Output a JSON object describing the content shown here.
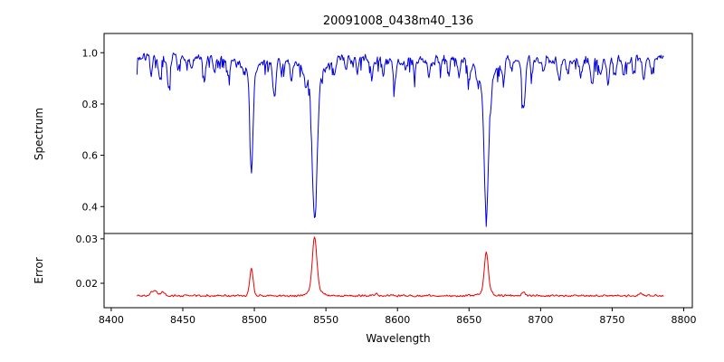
{
  "figure": {
    "background": "#ffffff"
  },
  "chart_data": {
    "type": "line",
    "title": "20091008_0438m40_136",
    "xlabel": "Wavelength",
    "xlim": [
      8395,
      8806
    ],
    "x_ticks": [
      8400,
      8450,
      8500,
      8550,
      8600,
      8650,
      8700,
      8750,
      8800
    ],
    "x_start": 8418,
    "x_end": 8786,
    "step": 0.5,
    "seed": 7,
    "panels": [
      {
        "ylabel": "Spectrum",
        "color": "#0000dd",
        "ylim": [
          0.295,
          1.075
        ],
        "y_tick_values": [
          0.4,
          0.6,
          0.8,
          1.0
        ],
        "y_tick_labels": [
          "0.4",
          "0.6",
          "0.8",
          "1.0"
        ],
        "base": 0.975,
        "noise": 0.02,
        "spiky": 0.3,
        "wave": {
          "amp": 0.006,
          "period": 120
        },
        "absorption_lines": [
          {
            "c": 8498.0,
            "d": 0.38,
            "w": 1.1,
            "wd": 0.05,
            "ww": 4.5
          },
          {
            "c": 8542.1,
            "d": 0.54,
            "w": 1.7,
            "wd": 0.09,
            "ww": 7.0
          },
          {
            "c": 8662.1,
            "d": 0.52,
            "w": 1.5,
            "wd": 0.1,
            "ww": 6.0
          },
          {
            "c": 8428,
            "d": 0.06,
            "w": 0.8
          },
          {
            "c": 8434,
            "d": 0.1,
            "w": 0.9
          },
          {
            "c": 8440,
            "d": 0.12,
            "w": 1.0
          },
          {
            "c": 8447,
            "d": 0.05,
            "w": 0.8
          },
          {
            "c": 8456,
            "d": 0.04,
            "w": 0.8
          },
          {
            "c": 8465,
            "d": 0.08,
            "w": 0.9
          },
          {
            "c": 8472,
            "d": 0.05,
            "w": 0.8
          },
          {
            "c": 8482,
            "d": 0.06,
            "w": 0.8
          },
          {
            "c": 8514,
            "d": 0.15,
            "w": 1.1
          },
          {
            "c": 8519,
            "d": 0.06,
            "w": 0.8
          },
          {
            "c": 8526,
            "d": 0.09,
            "w": 0.9
          },
          {
            "c": 8536,
            "d": 0.05,
            "w": 0.8
          },
          {
            "c": 8556,
            "d": 0.05,
            "w": 0.8
          },
          {
            "c": 8564,
            "d": 0.04,
            "w": 0.7
          },
          {
            "c": 8572,
            "d": 0.05,
            "w": 0.8
          },
          {
            "c": 8582,
            "d": 0.08,
            "w": 0.9
          },
          {
            "c": 8590,
            "d": 0.05,
            "w": 0.8
          },
          {
            "c": 8598,
            "d": 0.1,
            "w": 0.9
          },
          {
            "c": 8606,
            "d": 0.04,
            "w": 0.7
          },
          {
            "c": 8612,
            "d": 0.06,
            "w": 0.8
          },
          {
            "c": 8622,
            "d": 0.08,
            "w": 0.8
          },
          {
            "c": 8630,
            "d": 0.04,
            "w": 0.7
          },
          {
            "c": 8636,
            "d": 0.05,
            "w": 0.8
          },
          {
            "c": 8643,
            "d": 0.06,
            "w": 0.8
          },
          {
            "c": 8650,
            "d": 0.08,
            "w": 0.9
          },
          {
            "c": 8656,
            "d": 0.04,
            "w": 0.7
          },
          {
            "c": 8674,
            "d": 0.08,
            "w": 0.9
          },
          {
            "c": 8680,
            "d": 0.05,
            "w": 0.8
          },
          {
            "c": 8688,
            "d": 0.2,
            "w": 1.2
          },
          {
            "c": 8694,
            "d": 0.07,
            "w": 0.8
          },
          {
            "c": 8702,
            "d": 0.05,
            "w": 0.8
          },
          {
            "c": 8713,
            "d": 0.08,
            "w": 0.9
          },
          {
            "c": 8719,
            "d": 0.05,
            "w": 0.8
          },
          {
            "c": 8728,
            "d": 0.06,
            "w": 0.8
          },
          {
            "c": 8736,
            "d": 0.1,
            "w": 0.9
          },
          {
            "c": 8742,
            "d": 0.06,
            "w": 0.8
          },
          {
            "c": 8747,
            "d": 0.09,
            "w": 0.9
          },
          {
            "c": 8752,
            "d": 0.05,
            "w": 0.8
          },
          {
            "c": 8758,
            "d": 0.07,
            "w": 0.8
          },
          {
            "c": 8765,
            "d": 0.05,
            "w": 0.8
          },
          {
            "c": 8772,
            "d": 0.09,
            "w": 0.9
          },
          {
            "c": 8778,
            "d": 0.06,
            "w": 0.8
          }
        ]
      },
      {
        "ylabel": "Error",
        "color": "#ee0000",
        "ylim": [
          0.0145,
          0.0312
        ],
        "y_tick_values": [
          0.02,
          0.03
        ],
        "y_tick_labels": [
          "0.02",
          "0.03"
        ],
        "base": 0.0172,
        "noise": 0.00028,
        "emission_peaks": [
          {
            "c": 8498.0,
            "h": 0.006,
            "w": 1.2
          },
          {
            "c": 8542.1,
            "h": 0.0115,
            "w": 1.5
          },
          {
            "c": 8542.1,
            "h": 0.0018,
            "w": 4.0
          },
          {
            "c": 8662.1,
            "h": 0.0082,
            "w": 1.3
          },
          {
            "c": 8662.1,
            "h": 0.0016,
            "w": 3.0
          },
          {
            "c": 8430,
            "h": 0.0012,
            "w": 2.0
          },
          {
            "c": 8436,
            "h": 0.0009,
            "w": 1.2
          },
          {
            "c": 8585,
            "h": 0.0004,
            "w": 1.5
          },
          {
            "c": 8688,
            "h": 0.0007,
            "w": 1.2
          },
          {
            "c": 8770,
            "h": 0.0005,
            "w": 1.5
          }
        ]
      }
    ]
  }
}
